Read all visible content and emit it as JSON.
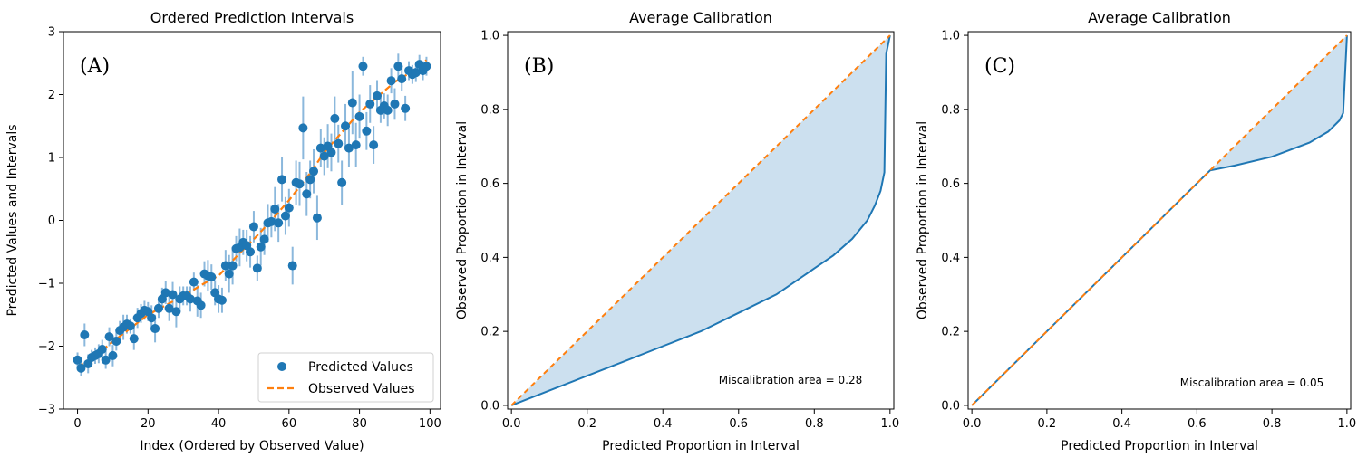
{
  "chart_data": [
    {
      "type": "scatter",
      "panel_label": "(A)",
      "title": "Ordered Prediction Intervals",
      "xlabel": "Index (Ordered by Observed Value)",
      "ylabel": "Predicted Values and Intervals",
      "xlim": [
        -4,
        103
      ],
      "ylim": [
        -3,
        3
      ],
      "xticks": [
        "0",
        "20",
        "40",
        "60",
        "80",
        "100"
      ],
      "yticks": [
        "−3",
        "−2",
        "−1",
        "0",
        "1",
        "2",
        "3"
      ],
      "legend": {
        "location": "lower-right",
        "entries": [
          "Predicted Values",
          "Observed Values"
        ]
      },
      "colors": {
        "points": "#1f77b4",
        "intervals": "#8bb8dc",
        "observed": "#ff7f0e"
      },
      "series": [
        {
          "name": "Predicted Values",
          "x": [
            0,
            1,
            2,
            3,
            4,
            5,
            6,
            7,
            8,
            9,
            10,
            11,
            12,
            13,
            14,
            15,
            16,
            17,
            18,
            19,
            20,
            21,
            22,
            23,
            24,
            25,
            26,
            27,
            28,
            29,
            30,
            31,
            32,
            33,
            34,
            35,
            36,
            37,
            38,
            39,
            40,
            41,
            42,
            43,
            44,
            45,
            46,
            47,
            48,
            49,
            50,
            51,
            52,
            53,
            54,
            55,
            56,
            57,
            58,
            59,
            60,
            61,
            62,
            63,
            64,
            65,
            66,
            67,
            68,
            69,
            70,
            71,
            72,
            73,
            74,
            75,
            76,
            77,
            78,
            79,
            80,
            81,
            82,
            83,
            84,
            85,
            86,
            87,
            88,
            89,
            90,
            91,
            92,
            93,
            94,
            95,
            96,
            97,
            98,
            99
          ],
          "y": [
            -2.22,
            -2.35,
            -1.82,
            -2.28,
            -2.18,
            -2.15,
            -2.12,
            -2.05,
            -2.22,
            -1.85,
            -2.15,
            -1.92,
            -1.75,
            -1.7,
            -1.65,
            -1.68,
            -1.88,
            -1.55,
            -1.48,
            -1.43,
            -1.45,
            -1.55,
            -1.72,
            -1.4,
            -1.25,
            -1.15,
            -1.4,
            -1.18,
            -1.45,
            -1.25,
            -1.2,
            -1.2,
            -1.25,
            -0.98,
            -1.28,
            -1.35,
            -0.85,
            -0.88,
            -0.9,
            -1.15,
            -1.25,
            -1.27,
            -0.72,
            -0.85,
            -0.72,
            -0.45,
            -0.43,
            -0.35,
            -0.4,
            -0.5,
            -0.1,
            -0.76,
            -0.42,
            -0.3,
            -0.04,
            -0.02,
            0.18,
            -0.04,
            0.65,
            0.07,
            0.2,
            -0.72,
            0.6,
            0.58,
            1.47,
            0.42,
            0.65,
            0.78,
            0.04,
            1.15,
            1.02,
            1.18,
            1.08,
            1.62,
            1.22,
            0.6,
            1.5,
            1.15,
            1.87,
            1.2,
            1.65,
            2.45,
            1.42,
            1.85,
            1.2,
            1.98,
            1.75,
            1.82,
            1.75,
            2.22,
            1.85,
            2.45,
            2.25,
            1.78,
            2.38,
            2.32,
            2.35,
            2.48,
            2.38,
            2.45
          ],
          "yerr": [
            0.12,
            0.12,
            0.18,
            0.15,
            0.12,
            0.13,
            0.15,
            0.15,
            0.14,
            0.15,
            0.17,
            0.15,
            0.15,
            0.2,
            0.15,
            0.12,
            0.18,
            0.16,
            0.15,
            0.15,
            0.15,
            0.2,
            0.22,
            0.15,
            0.18,
            0.18,
            0.2,
            0.2,
            0.25,
            0.2,
            0.15,
            0.15,
            0.2,
            0.15,
            0.25,
            0.2,
            0.2,
            0.25,
            0.2,
            0.2,
            0.22,
            0.2,
            0.25,
            0.3,
            0.3,
            0.2,
            0.3,
            0.2,
            0.25,
            0.25,
            0.25,
            0.2,
            0.3,
            0.25,
            0.3,
            0.25,
            0.35,
            0.3,
            0.35,
            0.3,
            0.3,
            0.3,
            0.35,
            0.35,
            0.5,
            0.35,
            0.3,
            0.35,
            0.35,
            0.3,
            0.3,
            0.35,
            0.3,
            0.35,
            0.3,
            0.35,
            0.35,
            0.3,
            0.5,
            0.35,
            0.35,
            0.15,
            0.3,
            0.3,
            0.3,
            0.25,
            0.2,
            0.2,
            0.25,
            0.2,
            0.25,
            0.2,
            0.2,
            0.2,
            0.15,
            0.15,
            0.15,
            0.15,
            0.15,
            0.15
          ]
        },
        {
          "name": "Observed Values",
          "style": "dashed-line",
          "x": [
            0,
            4,
            10,
            20,
            30,
            36,
            40,
            46,
            50,
            55,
            60,
            66,
            70,
            80,
            90,
            96,
            99
          ],
          "y": [
            -2.33,
            -2.2,
            -1.93,
            -1.5,
            -1.2,
            -1.0,
            -0.88,
            -0.52,
            -0.3,
            0.0,
            0.32,
            0.75,
            1.08,
            1.72,
            2.2,
            2.4,
            2.55
          ]
        }
      ]
    },
    {
      "type": "area",
      "panel_label": "(B)",
      "title": "Average Calibration",
      "xlabel": "Predicted Proportion in Interval",
      "ylabel": "Observed Proportion in Interval",
      "xlim": [
        -0.01,
        1.01
      ],
      "ylim": [
        -0.01,
        1.01
      ],
      "xticks": [
        "0.0",
        "0.2",
        "0.4",
        "0.6",
        "0.8",
        "1.0"
      ],
      "yticks": [
        "0.0",
        "0.2",
        "0.4",
        "0.6",
        "0.8",
        "1.0"
      ],
      "annotation": "Miscalibration area = 0.28",
      "colors": {
        "curve": "#1f77b4",
        "ideal": "#ff7f0e",
        "fill": "#cce0ef"
      },
      "series": [
        {
          "name": "ideal",
          "style": "dashed-line",
          "x": [
            0,
            1
          ],
          "y": [
            0,
            1
          ]
        },
        {
          "name": "calibration",
          "x": [
            0,
            0.1,
            0.2,
            0.3,
            0.4,
            0.5,
            0.6,
            0.7,
            0.8,
            0.85,
            0.9,
            0.94,
            0.96,
            0.975,
            0.985,
            0.99,
            1.0
          ],
          "y": [
            0,
            0.04,
            0.08,
            0.12,
            0.16,
            0.2,
            0.25,
            0.3,
            0.37,
            0.405,
            0.45,
            0.5,
            0.54,
            0.58,
            0.63,
            0.95,
            1.0
          ]
        }
      ],
      "miscalibration_area": 0.28
    },
    {
      "type": "area",
      "panel_label": "(C)",
      "title": "Average Calibration",
      "xlabel": "Predicted Proportion in Interval",
      "ylabel": "Observed Proportion in Interval",
      "xlim": [
        -0.01,
        1.01
      ],
      "ylim": [
        -0.01,
        1.01
      ],
      "xticks": [
        "0.0",
        "0.2",
        "0.4",
        "0.6",
        "0.8",
        "1.0"
      ],
      "yticks": [
        "0.0",
        "0.2",
        "0.4",
        "0.6",
        "0.8",
        "1.0"
      ],
      "annotation": "Miscalibration area = 0.05",
      "colors": {
        "curve": "#1f77b4",
        "ideal": "#ff7f0e",
        "fill": "#cce0ef"
      },
      "series": [
        {
          "name": "ideal",
          "style": "dashed-line",
          "x": [
            0,
            1
          ],
          "y": [
            0,
            1
          ]
        },
        {
          "name": "calibration",
          "x": [
            0,
            0.2,
            0.4,
            0.6,
            0.635,
            0.7,
            0.8,
            0.9,
            0.95,
            0.98,
            0.99,
            1.0
          ],
          "y": [
            0,
            0.2,
            0.4,
            0.6,
            0.635,
            0.648,
            0.672,
            0.71,
            0.74,
            0.77,
            0.79,
            1.0
          ]
        }
      ],
      "miscalibration_area": 0.05
    }
  ]
}
